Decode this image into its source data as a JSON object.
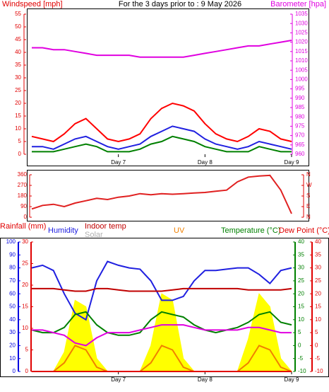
{
  "chart_data": [
    {
      "type": "line",
      "title": "For the 3 days prior to : 9 May 2026",
      "xlim": [
        0,
        72
      ],
      "xticks": [
        {
          "value": 24,
          "label": "Day 7"
        },
        {
          "value": 48,
          "label": "Day 8"
        },
        {
          "value": 72,
          "label": "Day 9"
        }
      ],
      "axes": [
        {
          "label": "Windspeed [mph]",
          "color": "#e00000",
          "lim": [
            0,
            55
          ],
          "ticks": [
            0,
            5,
            10,
            15,
            20,
            25,
            30,
            35,
            40,
            45,
            50,
            55
          ]
        },
        {
          "label": "Barometer [hpa]",
          "color": "#e000e0",
          "lim": [
            960,
            1035
          ],
          "ticks": [
            960,
            965,
            970,
            975,
            980,
            985,
            990,
            995,
            1000,
            1005,
            1010,
            1015,
            1020,
            1025,
            1030,
            1035
          ]
        }
      ],
      "x": [
        0,
        3,
        6,
        9,
        12,
        15,
        18,
        21,
        24,
        27,
        30,
        33,
        36,
        39,
        42,
        45,
        48,
        51,
        54,
        57,
        60,
        63,
        66,
        69,
        72
      ],
      "series": [
        {
          "color": "#ff0000",
          "axis": 0,
          "values": [
            7,
            6,
            5,
            8,
            12,
            14,
            10,
            6,
            5,
            6,
            8,
            14,
            18,
            20,
            19,
            17,
            12,
            8,
            6,
            5,
            7,
            10,
            9,
            6,
            5
          ]
        },
        {
          "color": "#2020e0",
          "axis": 0,
          "values": [
            3,
            3,
            2,
            4,
            6,
            7,
            5,
            3,
            2,
            3,
            4,
            7,
            9,
            11,
            10,
            9,
            6,
            4,
            3,
            2,
            3,
            5,
            4,
            3,
            2
          ]
        },
        {
          "color": "#008000",
          "axis": 0,
          "values": [
            1,
            1,
            1,
            2,
            3,
            4,
            3,
            1,
            1,
            1,
            2,
            4,
            5,
            7,
            6,
            5,
            3,
            2,
            1,
            1,
            1,
            3,
            2,
            1,
            1
          ]
        },
        {
          "color": "#e000e0",
          "axis": 1,
          "values": [
            1017,
            1017,
            1016,
            1016,
            1015,
            1014,
            1013,
            1013,
            1013,
            1013,
            1012,
            1012,
            1012,
            1012,
            1012,
            1013,
            1014,
            1015,
            1016,
            1017,
            1018,
            1018,
            1019,
            1020,
            1021
          ]
        }
      ]
    },
    {
      "type": "line",
      "xlim": [
        0,
        72
      ],
      "axes": [
        {
          "color": "#e00000",
          "lim": [
            0,
            360
          ],
          "ticks": [
            0,
            90,
            180,
            270,
            360
          ]
        },
        {
          "color": "#e00000",
          "lim": [
            0,
            360
          ],
          "ticks": [
            {
              "value": 0,
              "label": "N"
            },
            {
              "value": 90,
              "label": "E"
            },
            {
              "value": 180,
              "label": "S"
            },
            {
              "value": 270,
              "label": "W"
            },
            {
              "value": 360,
              "label": "N"
            }
          ]
        }
      ],
      "x": [
        0,
        3,
        6,
        9,
        12,
        15,
        18,
        21,
        24,
        27,
        30,
        33,
        36,
        39,
        42,
        45,
        48,
        51,
        54,
        57,
        60,
        63,
        66,
        69,
        72
      ],
      "series": [
        {
          "color": "#e02020",
          "axis": 0,
          "values": [
            70,
            100,
            110,
            90,
            120,
            140,
            160,
            150,
            170,
            180,
            200,
            190,
            200,
            195,
            200,
            205,
            210,
            220,
            230,
            300,
            340,
            350,
            355,
            230,
            30
          ]
        }
      ]
    },
    {
      "type": "line",
      "xlim": [
        0,
        72
      ],
      "xticks": [
        {
          "value": 24,
          "label": "Day 7"
        },
        {
          "value": 48,
          "label": "Day 8"
        },
        {
          "value": 72,
          "label": "Day 9"
        }
      ],
      "axes": [
        {
          "color": "#0000e0",
          "lim": [
            0,
            100
          ],
          "ticks": [
            0,
            10,
            20,
            30,
            40,
            50,
            60,
            70,
            80,
            90,
            100
          ]
        },
        {
          "color": "#e00000",
          "lim": [
            0,
            30
          ],
          "ticks": [
            0,
            5,
            10,
            15,
            20,
            25,
            30
          ]
        },
        {
          "color": "#008000",
          "lim": [
            -10,
            40
          ],
          "ticks": [
            -10,
            -5,
            0,
            5,
            10,
            15,
            20,
            25,
            30,
            35,
            40
          ]
        },
        {
          "color": "#e00000",
          "lim": [
            -10,
            40
          ],
          "ticks": [
            -10,
            -5,
            0,
            5,
            10,
            15,
            20,
            25,
            30,
            35,
            40
          ]
        }
      ],
      "x": [
        0,
        3,
        6,
        9,
        12,
        15,
        18,
        21,
        24,
        27,
        30,
        33,
        36,
        39,
        42,
        45,
        48,
        51,
        54,
        57,
        60,
        63,
        66,
        69,
        72
      ],
      "series": [
        {
          "name": "Solar",
          "color": "#ffff00",
          "style": "area",
          "axis": 0,
          "values": [
            0,
            0,
            0,
            15,
            55,
            50,
            10,
            0,
            0,
            0,
            0,
            20,
            60,
            55,
            10,
            0,
            0,
            0,
            0,
            0,
            25,
            60,
            50,
            10,
            0
          ]
        },
        {
          "name": "UV",
          "color": "#f08000",
          "axis": 1,
          "values": [
            0,
            0,
            0,
            2,
            6,
            5,
            1,
            0,
            0,
            0,
            0,
            2,
            6,
            5,
            1,
            0,
            0,
            0,
            0,
            0,
            2,
            6,
            5,
            1,
            0
          ]
        },
        {
          "name": "Rainfall (mm)",
          "color": "#e00000",
          "axis": 1,
          "values": [
            0,
            0,
            0,
            0,
            0,
            0,
            0,
            0,
            0,
            0,
            0,
            0,
            0,
            0,
            0,
            0,
            0,
            0,
            0,
            0,
            0,
            0,
            0,
            0,
            0
          ]
        },
        {
          "name": "Humidity",
          "color": "#2020e0",
          "axis": 0,
          "values": [
            80,
            82,
            78,
            60,
            45,
            40,
            70,
            85,
            82,
            80,
            79,
            70,
            55,
            55,
            58,
            70,
            78,
            78,
            79,
            80,
            80,
            75,
            68,
            78,
            80
          ]
        },
        {
          "name": "Indoor temp",
          "color": "#c00000",
          "axis": 2,
          "values": [
            22,
            22,
            22,
            21.5,
            21,
            21,
            22,
            22,
            21.5,
            21,
            21,
            21,
            21,
            21.5,
            22,
            22,
            22,
            22,
            22,
            22,
            21.5,
            21.5,
            21.5,
            21.5,
            22
          ]
        },
        {
          "name": "Temperature (°C)",
          "color": "#008000",
          "axis": 2,
          "values": [
            6,
            5,
            5,
            7,
            12,
            13,
            8,
            5,
            4,
            4,
            5,
            10,
            13,
            12,
            11,
            8,
            6,
            5,
            6,
            7,
            9,
            12,
            13,
            9,
            8
          ]
        },
        {
          "name": "Dew Point (°C)",
          "color": "#e000e0",
          "axis": 3,
          "values": [
            6,
            6,
            5,
            4,
            1,
            0,
            3,
            5,
            5,
            5,
            6,
            7,
            8,
            8,
            8,
            7,
            6,
            6,
            6,
            6,
            7,
            7,
            6,
            5,
            5
          ]
        }
      ]
    }
  ]
}
